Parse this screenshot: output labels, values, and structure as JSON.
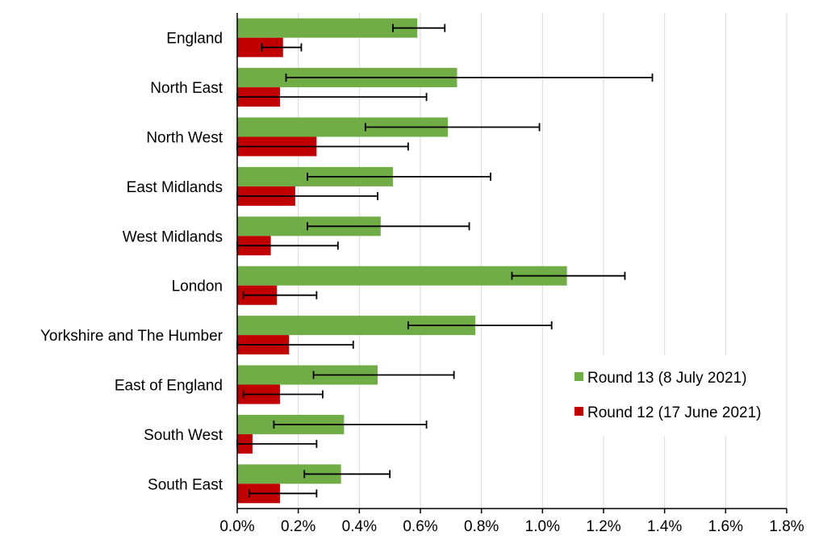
{
  "chart_data": {
    "type": "bar",
    "orientation": "horizontal",
    "categories": [
      "England",
      "North East",
      "North West",
      "East Midlands",
      "West Midlands",
      "London",
      "Yorkshire and The Humber",
      "East of England",
      "South West",
      "South East"
    ],
    "series": [
      {
        "name": "Round 13 (8 July 2021)",
        "color": "#70ad47",
        "values": [
          0.59,
          0.72,
          0.69,
          0.51,
          0.47,
          1.08,
          0.78,
          0.46,
          0.35,
          0.34
        ],
        "error_low": [
          0.51,
          0.16,
          0.42,
          0.23,
          0.23,
          0.9,
          0.56,
          0.25,
          0.12,
          0.22
        ],
        "error_high": [
          0.68,
          1.36,
          0.99,
          0.83,
          0.76,
          1.27,
          1.03,
          0.71,
          0.62,
          0.5
        ]
      },
      {
        "name": "Round 12 (17 June 2021)",
        "color": "#c00000",
        "values": [
          0.15,
          0.14,
          0.26,
          0.19,
          0.11,
          0.13,
          0.17,
          0.14,
          0.05,
          0.14
        ],
        "error_low": [
          0.08,
          0.0,
          0.0,
          0.0,
          0.0,
          0.02,
          0.0,
          0.02,
          0.0,
          0.04
        ],
        "error_high": [
          0.21,
          0.62,
          0.56,
          0.46,
          0.33,
          0.26,
          0.38,
          0.28,
          0.26,
          0.26
        ]
      }
    ],
    "xlim": [
      0,
      1.8
    ],
    "xticks": [
      "0.0%",
      "0.2%",
      "0.4%",
      "0.6%",
      "0.8%",
      "1.0%",
      "1.2%",
      "1.4%",
      "1.6%",
      "1.8%"
    ],
    "grid": "vertical",
    "legend": "bottom-right",
    "title": "",
    "xlabel": "",
    "ylabel": ""
  }
}
